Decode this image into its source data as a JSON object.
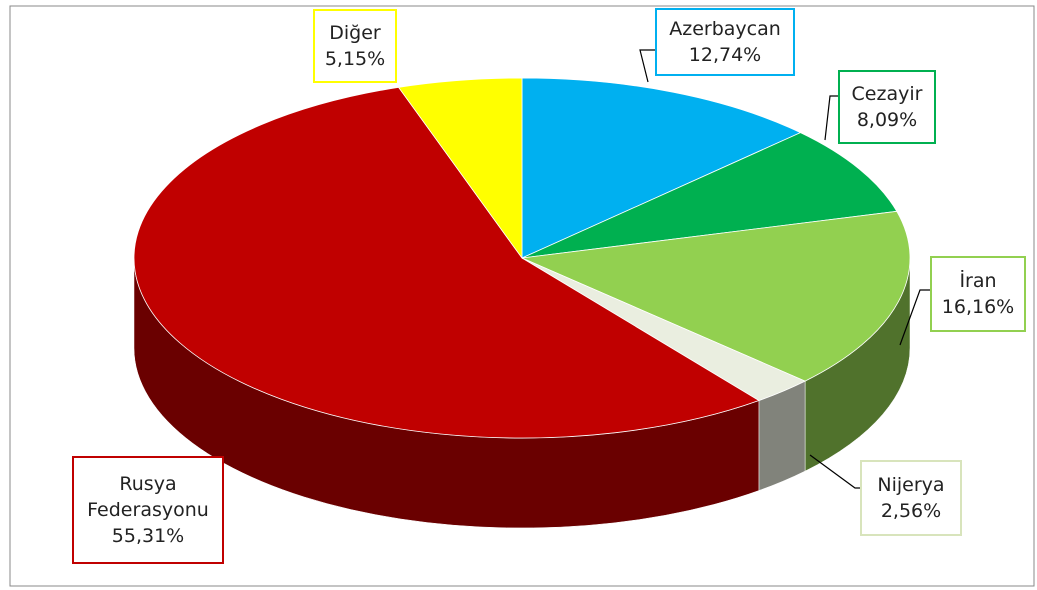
{
  "chart_data": {
    "type": "pie",
    "categories": [
      "Azerbaycan",
      "Cezayir",
      "İran",
      "Nijerya",
      "Rusya Federasyonu",
      "Diğer"
    ],
    "values": [
      12.74,
      8.09,
      16.16,
      2.56,
      55.31,
      5.15
    ],
    "value_labels": [
      "12,74%",
      "8,09%",
      "16,16%",
      "2,56%",
      "55,31%",
      "5,15%"
    ],
    "colors": [
      "#00b0f0",
      "#00b050",
      "#92d050",
      "#eaeee0",
      "#c00000",
      "#ffff00"
    ]
  }
}
